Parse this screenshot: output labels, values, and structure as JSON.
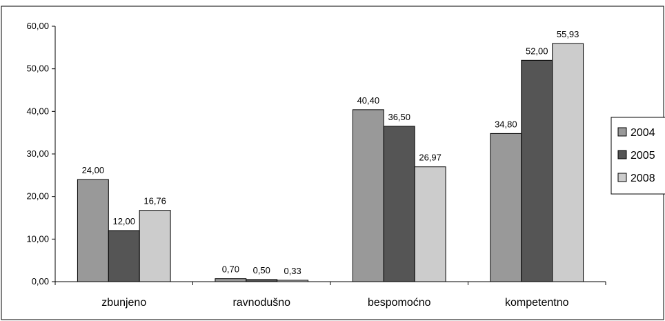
{
  "chart_data": {
    "type": "bar",
    "categories": [
      "zbunjeno",
      "ravnodušno",
      "bespomoćno",
      "kompetentno"
    ],
    "series": [
      {
        "name": "2004",
        "color": "#999999",
        "values": [
          24.0,
          0.7,
          40.4,
          34.8
        ],
        "labels": [
          "24,00",
          "0,70",
          "40,40",
          "34,80"
        ]
      },
      {
        "name": "2005",
        "color": "#555555",
        "values": [
          12.0,
          0.5,
          36.5,
          52.0
        ],
        "labels": [
          "12,00",
          "0,50",
          "36,50",
          "52,00"
        ]
      },
      {
        "name": "2008",
        "color": "#cccccc",
        "values": [
          16.76,
          0.33,
          26.97,
          55.93
        ],
        "labels": [
          "16,76",
          "0,33",
          "26,97",
          "55,93"
        ]
      }
    ],
    "ylim": [
      0,
      60
    ],
    "yticks": [
      0,
      10,
      20,
      30,
      40,
      50,
      60
    ],
    "ytick_labels": [
      "0,00",
      "10,00",
      "20,00",
      "30,00",
      "40,00",
      "50,00",
      "60,00"
    ],
    "grid": false,
    "legend_position": "right"
  }
}
